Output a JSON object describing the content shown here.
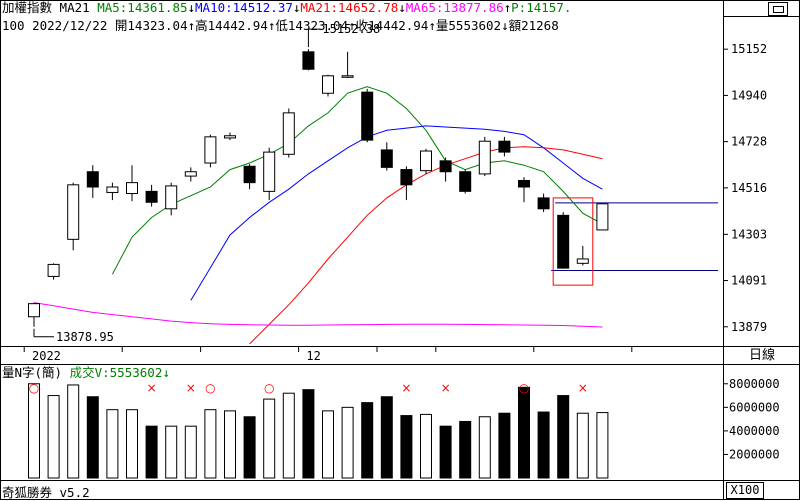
{
  "header": {
    "name": "加權指數",
    "period_ma": "MA21",
    "ma5": {
      "label": "MA5:14361.85",
      "arrow": "↓",
      "color": "#008000"
    },
    "ma10": {
      "label": "MA10:14512.37",
      "arrow": "↓",
      "color": "#0000ff"
    },
    "ma21": {
      "label": "MA21:14652.78",
      "arrow": "↓",
      "color": "#ff0000"
    },
    "ma65": {
      "label": "MA65:13877.86",
      "arrow": "↑",
      "color": "#ff00ff"
    },
    "p": {
      "label": "P:14157.",
      "color": "#008000"
    },
    "line2": {
      "prefix": "100 2022/12/22",
      "open": "開14323.04",
      "open_arrow": "↑",
      "high": "高14442.94",
      "high_arrow": "↑",
      "low": "低14323.04",
      "low_arrow": "↑",
      "close": "收14442.94",
      "close_arrow": "↑",
      "volume": "量5553602",
      "volume_arrow": "↓",
      "amount": "額21268"
    }
  },
  "volume_header": {
    "title": "量N字(簡)",
    "deal_label": "成交V:5553602",
    "deal_arrow": "↓",
    "deal_color": "#008000"
  },
  "footer": {
    "label": "奇狐勝券 v5.2"
  },
  "period_button": "日線",
  "zoom_label": "X100",
  "chart_data": {
    "type": "candlestick",
    "price_axis": {
      "range": [
        13800,
        15240
      ],
      "ticks": [
        "15152",
        "14940",
        "14728",
        "14516",
        "14303",
        "14091",
        "13879"
      ]
    },
    "volume_axis": {
      "range": [
        0,
        9000000
      ],
      "ticks": [
        "8000000",
        "6000000",
        "4000000",
        "2000000"
      ]
    },
    "x_labels": [
      {
        "label": "2022",
        "index": 0
      },
      {
        "label": "12",
        "index": 14
      }
    ],
    "annotations": [
      {
        "text": "15152.38",
        "index": 14
      },
      {
        "text": "13878.95",
        "index": 0
      }
    ],
    "candles": [
      {
        "o": 13925,
        "h": 13990,
        "l": 13879,
        "c": 13985
      },
      {
        "o": 14110,
        "h": 14170,
        "l": 14095,
        "c": 14165
      },
      {
        "o": 14280,
        "h": 14540,
        "l": 14230,
        "c": 14530
      },
      {
        "o": 14590,
        "h": 14620,
        "l": 14470,
        "c": 14520
      },
      {
        "o": 14495,
        "h": 14540,
        "l": 14460,
        "c": 14520
      },
      {
        "o": 14490,
        "h": 14620,
        "l": 14455,
        "c": 14540
      },
      {
        "o": 14500,
        "h": 14530,
        "l": 14430,
        "c": 14450
      },
      {
        "o": 14420,
        "h": 14540,
        "l": 14390,
        "c": 14525
      },
      {
        "o": 14570,
        "h": 14610,
        "l": 14545,
        "c": 14590
      },
      {
        "o": 14630,
        "h": 14760,
        "l": 14610,
        "c": 14750
      },
      {
        "o": 14745,
        "h": 14770,
        "l": 14735,
        "c": 14755
      },
      {
        "o": 14615,
        "h": 14625,
        "l": 14510,
        "c": 14540
      },
      {
        "o": 14500,
        "h": 14700,
        "l": 14460,
        "c": 14680
      },
      {
        "o": 14670,
        "h": 14880,
        "l": 14655,
        "c": 14860
      },
      {
        "o": 15140,
        "h": 15152.38,
        "l": 15055,
        "c": 15060
      },
      {
        "o": 14950,
        "h": 15035,
        "l": 14935,
        "c": 15030
      },
      {
        "o": 15025,
        "h": 15140,
        "l": 15020,
        "c": 15030
      },
      {
        "o": 14955,
        "h": 14970,
        "l": 14725,
        "c": 14735
      },
      {
        "o": 14690,
        "h": 14725,
        "l": 14595,
        "c": 14610
      },
      {
        "o": 14600,
        "h": 14615,
        "l": 14460,
        "c": 14530
      },
      {
        "o": 14595,
        "h": 14695,
        "l": 14580,
        "c": 14685
      },
      {
        "o": 14640,
        "h": 14655,
        "l": 14545,
        "c": 14590
      },
      {
        "o": 14590,
        "h": 14600,
        "l": 14490,
        "c": 14500
      },
      {
        "o": 14580,
        "h": 14750,
        "l": 14570,
        "c": 14730
      },
      {
        "o": 14730,
        "h": 14750,
        "l": 14660,
        "c": 14680
      },
      {
        "o": 14550,
        "h": 14565,
        "l": 14450,
        "c": 14520
      },
      {
        "o": 14470,
        "h": 14490,
        "l": 14405,
        "c": 14420
      },
      {
        "o": 14390,
        "h": 14405,
        "l": 14145,
        "c": 14148
      },
      {
        "o": 14170,
        "h": 14250,
        "l": 14160,
        "c": 14190
      },
      {
        "o": 14323.04,
        "h": 14442.94,
        "l": 14323.04,
        "c": 14442.94
      }
    ],
    "ma_series": [
      {
        "name": "MA5",
        "color": "#008000",
        "values": [
          null,
          null,
          null,
          null,
          14120,
          14290,
          14380,
          14440,
          14480,
          14520,
          14600,
          14630,
          14670,
          14720,
          14800,
          14860,
          14950,
          14980,
          14950,
          14880,
          14780,
          14640,
          14600,
          14630,
          14640,
          14620,
          14590,
          14500,
          14400,
          14350
        ]
      },
      {
        "name": "MA10",
        "color": "#0000ff",
        "values": [
          null,
          null,
          null,
          null,
          null,
          null,
          null,
          null,
          14000,
          14150,
          14300,
          14380,
          14450,
          14510,
          14580,
          14640,
          14700,
          14750,
          14780,
          14790,
          14800,
          14795,
          14790,
          14785,
          14775,
          14760,
          14700,
          14630,
          14560,
          14510
        ]
      },
      {
        "name": "MA21",
        "color": "#ff0000",
        "values": [
          null,
          null,
          null,
          null,
          null,
          null,
          null,
          null,
          null,
          null,
          null,
          13800,
          13890,
          13980,
          14080,
          14190,
          14290,
          14390,
          14470,
          14530,
          14580,
          14620,
          14650,
          14680,
          14700,
          14705,
          14700,
          14690,
          14670,
          14650
        ]
      },
      {
        "name": "MA65",
        "color": "#ff00ff",
        "values": [
          13990,
          13975,
          13960,
          13945,
          13935,
          13925,
          13915,
          13905,
          13898,
          13893,
          13890,
          13888,
          13887,
          13886,
          13886,
          13887,
          13888,
          13889,
          13890,
          13891,
          13891,
          13891,
          13890,
          13889,
          13888,
          13887,
          13886,
          13885,
          13881,
          13878
        ]
      }
    ],
    "volumes": [
      8000000,
      7000000,
      7900000,
      6900000,
      5800000,
      5800000,
      4400000,
      4400000,
      4400000,
      5800000,
      5700000,
      5200000,
      6700000,
      7200000,
      7500000,
      5700000,
      6000000,
      6400000,
      6900000,
      5300000,
      5400000,
      4400000,
      4800000,
      5200000,
      5500000,
      7700000,
      5600000,
      7000000,
      5500000,
      5553602
    ],
    "volume_marks": [
      {
        "index": 0,
        "mark": "○"
      },
      {
        "index": 6,
        "mark": "×"
      },
      {
        "index": 8,
        "mark": "×"
      },
      {
        "index": 9,
        "mark": "○"
      },
      {
        "index": 12,
        "mark": "○"
      },
      {
        "index": 19,
        "mark": "×"
      },
      {
        "index": 21,
        "mark": "×"
      },
      {
        "index": 25,
        "mark": "○"
      },
      {
        "index": 28,
        "mark": "×"
      }
    ],
    "h_lines": [
      {
        "value": 14447,
        "color": "#000080"
      },
      {
        "value": 14137,
        "color": "#000080"
      }
    ],
    "highlight_box": {
      "from_index": 27,
      "to_index": 28,
      "top_value": 14470,
      "bottom_value": 14070,
      "color": "#ff0000"
    }
  }
}
